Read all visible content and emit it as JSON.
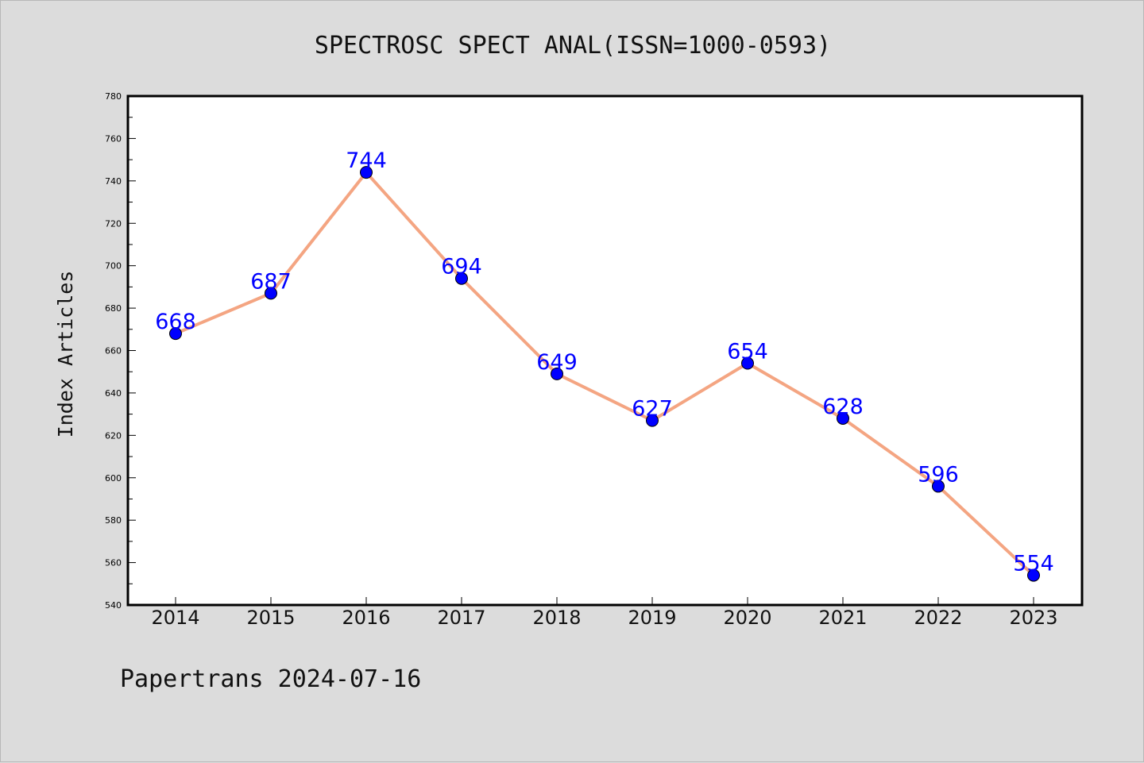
{
  "chart_data": {
    "type": "line",
    "title": "SPECTROSC SPECT ANAL(ISSN=1000-0593)",
    "xlabel": "",
    "ylabel": "Index Articles",
    "categories": [
      "2014",
      "2015",
      "2016",
      "2017",
      "2018",
      "2019",
      "2020",
      "2021",
      "2022",
      "2023"
    ],
    "series": [
      {
        "values": [
          668,
          687,
          744,
          694,
          649,
          627,
          654,
          628,
          596,
          554
        ]
      }
    ],
    "ylim": [
      540,
      780
    ],
    "yticks": [
      540,
      560,
      580,
      600,
      620,
      640,
      660,
      680,
      700,
      720,
      740,
      760,
      780
    ],
    "grid": false,
    "legend": "none",
    "data_labels": true,
    "colors": {
      "line": "#f4a582",
      "marker": "#0000ff",
      "marker_edge": "#000000",
      "data_label": "#0000ff",
      "plot_background": "#ffffff",
      "figure_background": "#dcdcdc"
    }
  },
  "footer": {
    "caption": "Papertrans 2024-07-16"
  }
}
